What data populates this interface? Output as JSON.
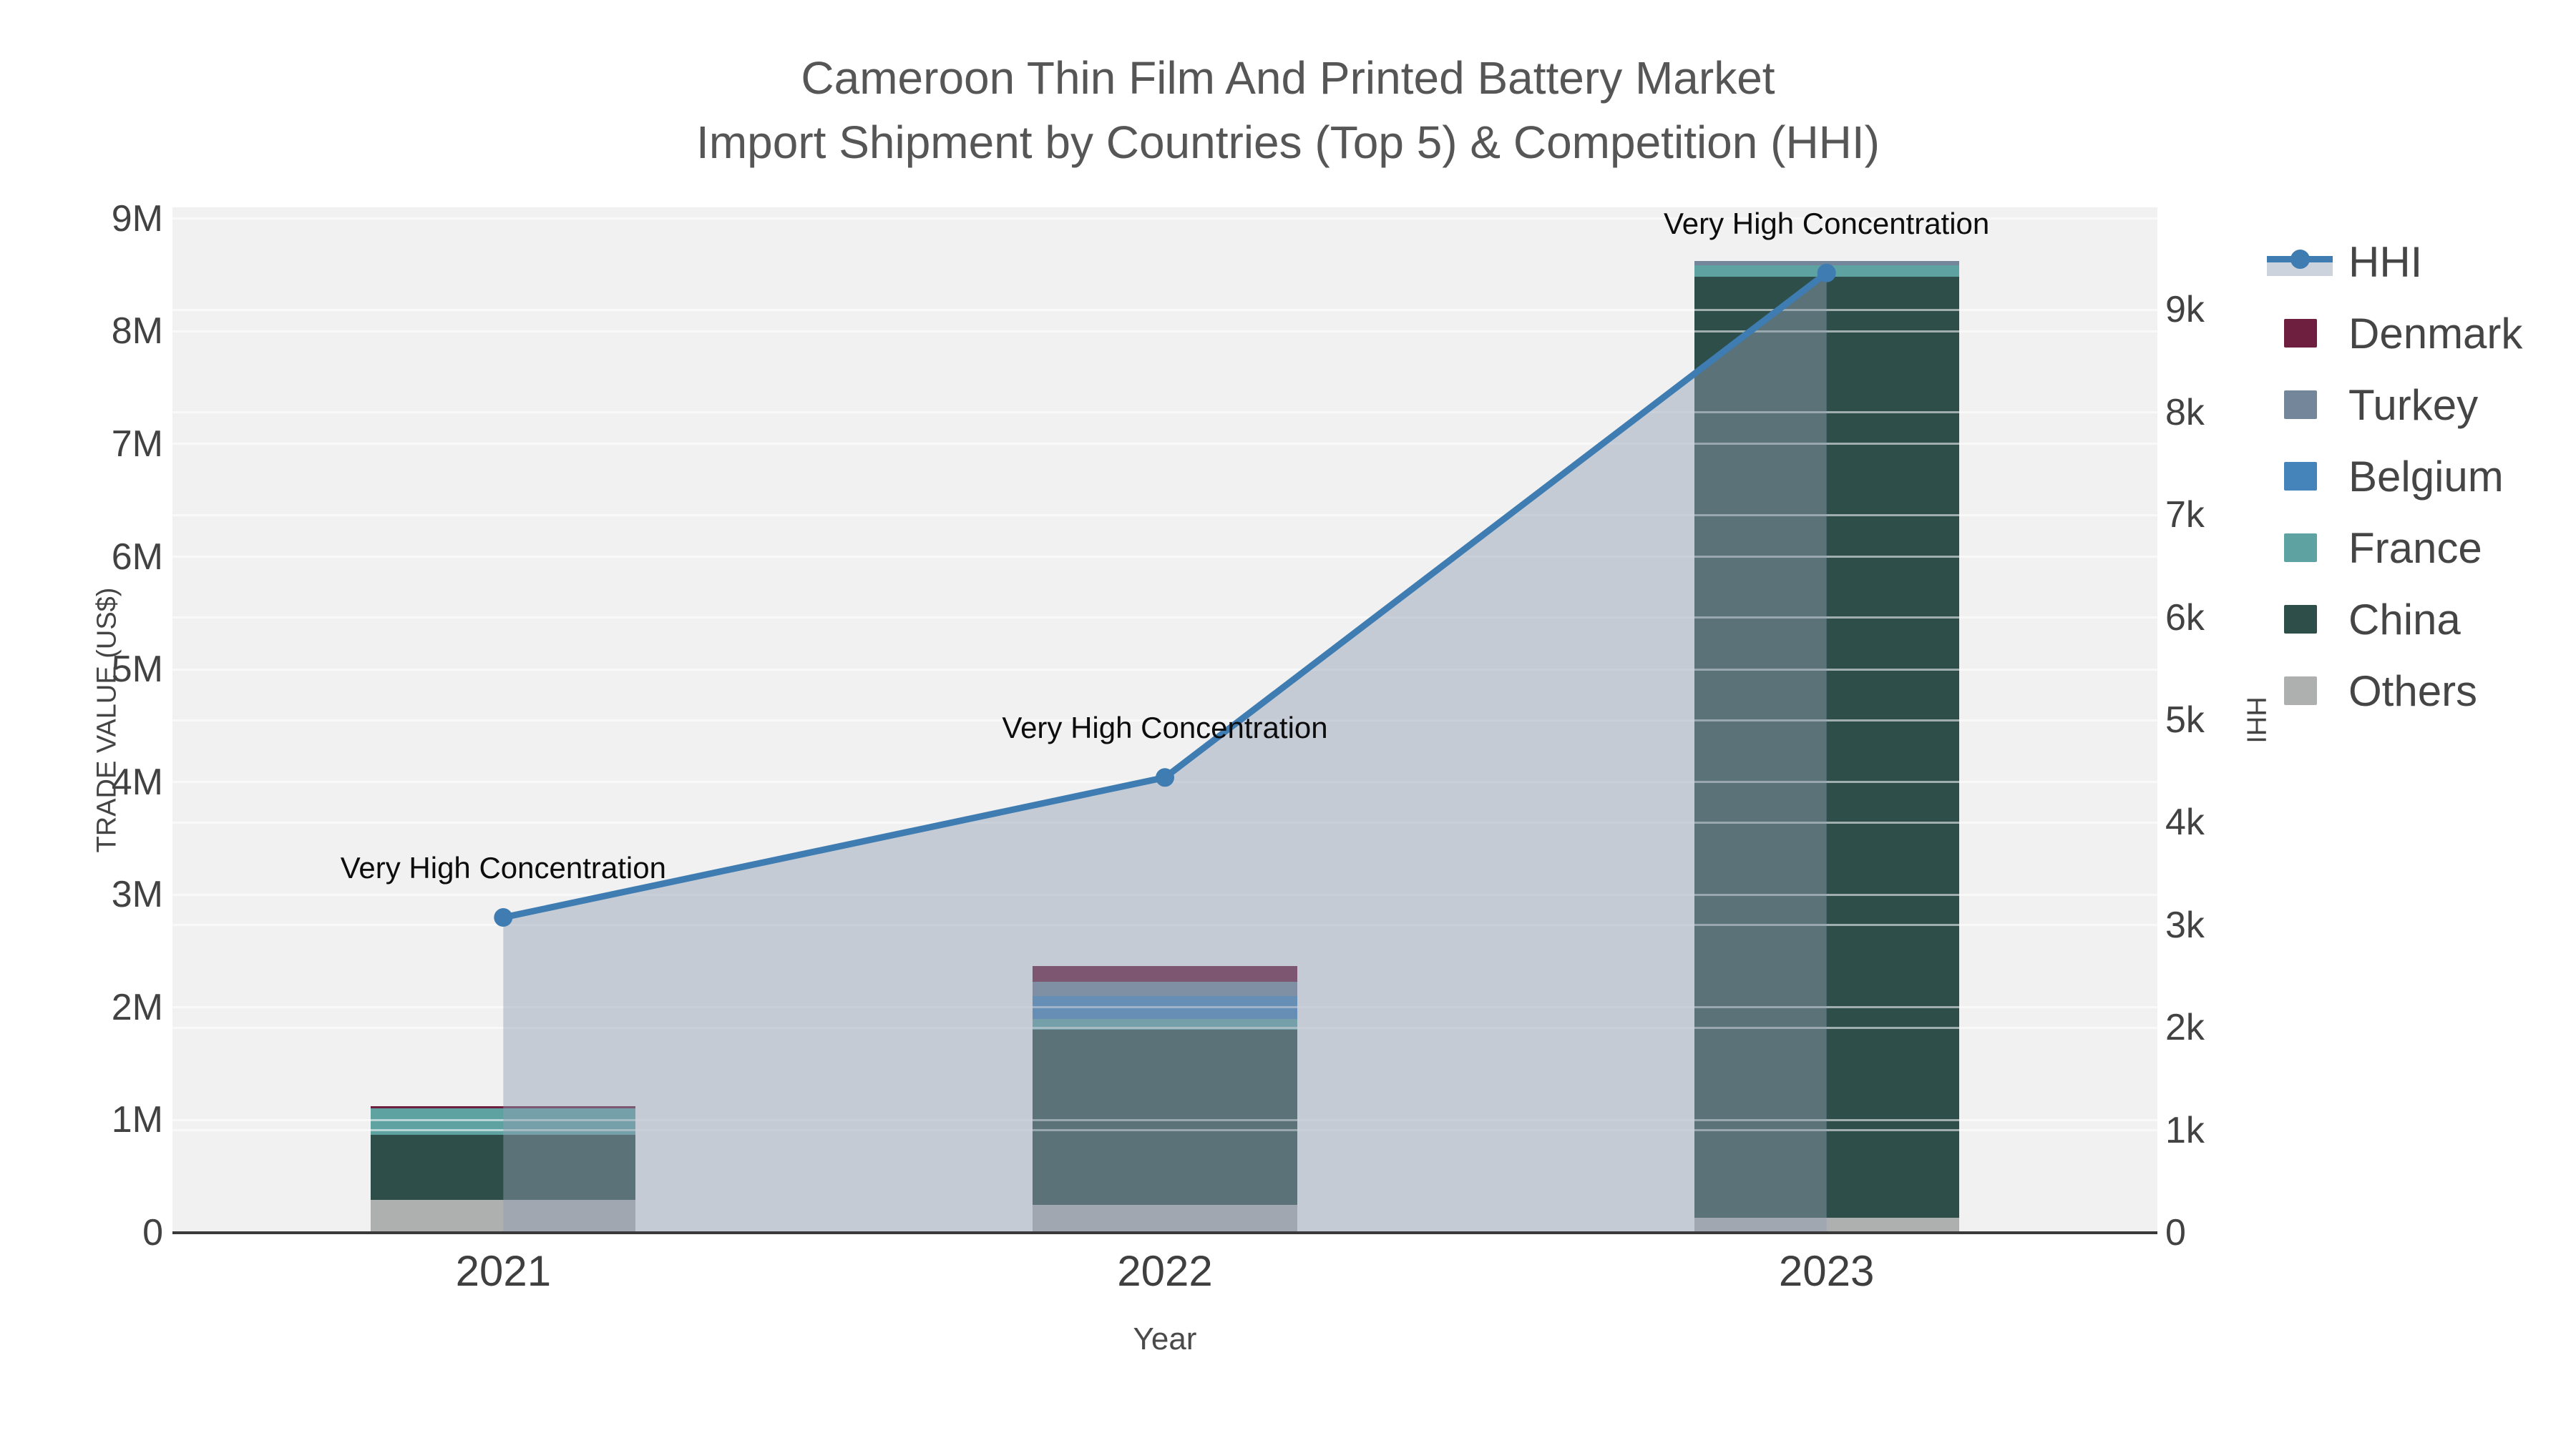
{
  "title": {
    "line1": "Cameroon Thin Film And Printed Battery Market",
    "line2": "Import Shipment by Countries (Top 5) & Competition (HHI)"
  },
  "axes": {
    "x": {
      "title": "Year",
      "tick_labels": [
        "2021",
        "2022",
        "2023"
      ]
    },
    "y_left": {
      "title": "TRADE VALUE (US$)",
      "tick_labels": [
        "0",
        "1M",
        "2M",
        "3M",
        "4M",
        "5M",
        "6M",
        "7M",
        "8M",
        "9M"
      ]
    },
    "y_right": {
      "title": "HHI",
      "tick_labels": [
        "0",
        "1k",
        "2k",
        "3k",
        "4k",
        "5k",
        "6k",
        "7k",
        "8k",
        "9k"
      ]
    }
  },
  "legend": [
    {
      "label": "HHI",
      "type": "line",
      "color": "#3e7cb2"
    },
    {
      "label": "Denmark",
      "type": "bar",
      "color": "#6e1e3f"
    },
    {
      "label": "Turkey",
      "type": "bar",
      "color": "#74869a"
    },
    {
      "label": "Belgium",
      "type": "bar",
      "color": "#4583bb"
    },
    {
      "label": "France",
      "type": "bar",
      "color": "#5fa2a2"
    },
    {
      "label": "China",
      "type": "bar",
      "color": "#2e4f49"
    },
    {
      "label": "Others",
      "type": "bar",
      "color": "#aeb0b0"
    }
  ],
  "annotations": [
    "Very High Concentration",
    "Very High Concentration",
    "Very High Concentration"
  ],
  "colors": {
    "plot_bg": "#f1f1f1",
    "grid": "#ffffff",
    "axis_line": "#3a3a3a",
    "hhi_line": "#3e7cb2",
    "hhi_fill": "#919eb2",
    "hhi_fill_opacity": 0.45,
    "annotation_text": "#0d0d0d",
    "tick_text": "#424242",
    "title_text": "#565656"
  },
  "chart_data": {
    "type": "bar",
    "subtype": "stacked-bars-with-line-overlay",
    "title": "Cameroon Thin Film And Printed Battery Market Import Shipment by Countries (Top 5) & Competition (HHI)",
    "categories": [
      "2021",
      "2022",
      "2023"
    ],
    "series": [
      {
        "name": "Denmark",
        "axis": "left",
        "values": [
          20000,
          135000,
          0
        ]
      },
      {
        "name": "Turkey",
        "axis": "left",
        "values": [
          0,
          130000,
          40000
        ]
      },
      {
        "name": "Belgium",
        "axis": "left",
        "values": [
          0,
          200000,
          0
        ]
      },
      {
        "name": "France",
        "axis": "left",
        "values": [
          235000,
          100000,
          100000
        ]
      },
      {
        "name": "China",
        "axis": "left",
        "values": [
          580000,
          1550000,
          8350000
        ]
      },
      {
        "name": "Others",
        "axis": "left",
        "values": [
          290000,
          250000,
          135000
        ]
      }
    ],
    "line_series": {
      "name": "HHI",
      "axis": "right",
      "values": [
        3075,
        4440,
        9360
      ],
      "point_annotations": [
        "Very High Concentration",
        "Very High Concentration",
        "Very High Concentration"
      ]
    },
    "xlabel": "Year",
    "ylabel_left": "TRADE VALUE (US$)",
    "ylabel_right": "HHI",
    "ylim_left": [
      0,
      9100000
    ],
    "ylim_right": [
      0,
      10000
    ],
    "grid": true,
    "legend_position": "right"
  }
}
